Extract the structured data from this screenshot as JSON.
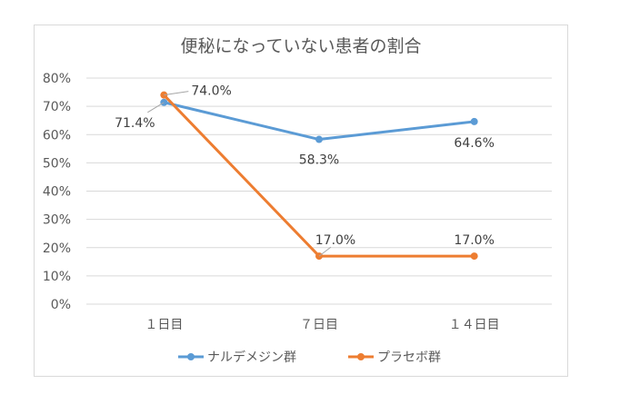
{
  "chart_data": {
    "type": "line",
    "title": "便秘になっていない患者の割合",
    "categories": [
      "１日目",
      "７日目",
      "１４日目"
    ],
    "y_ticks": [
      "0%",
      "10%",
      "20%",
      "30%",
      "40%",
      "50%",
      "60%",
      "70%",
      "80%"
    ],
    "ylim": [
      0,
      80
    ],
    "y_unit": "%",
    "grid": true,
    "legend_position": "bottom",
    "series": [
      {
        "name": "ナルデメジン群",
        "color": "#5b9bd5",
        "values": [
          71.4,
          58.3,
          64.6
        ],
        "labels": [
          "71.4%",
          "58.3%",
          "64.6%"
        ]
      },
      {
        "name": "プラセボ群",
        "color": "#ed7d31",
        "values": [
          74.0,
          17.0,
          17.0
        ],
        "labels": [
          "74.0%",
          "17.0%",
          "17.0%"
        ]
      }
    ]
  }
}
